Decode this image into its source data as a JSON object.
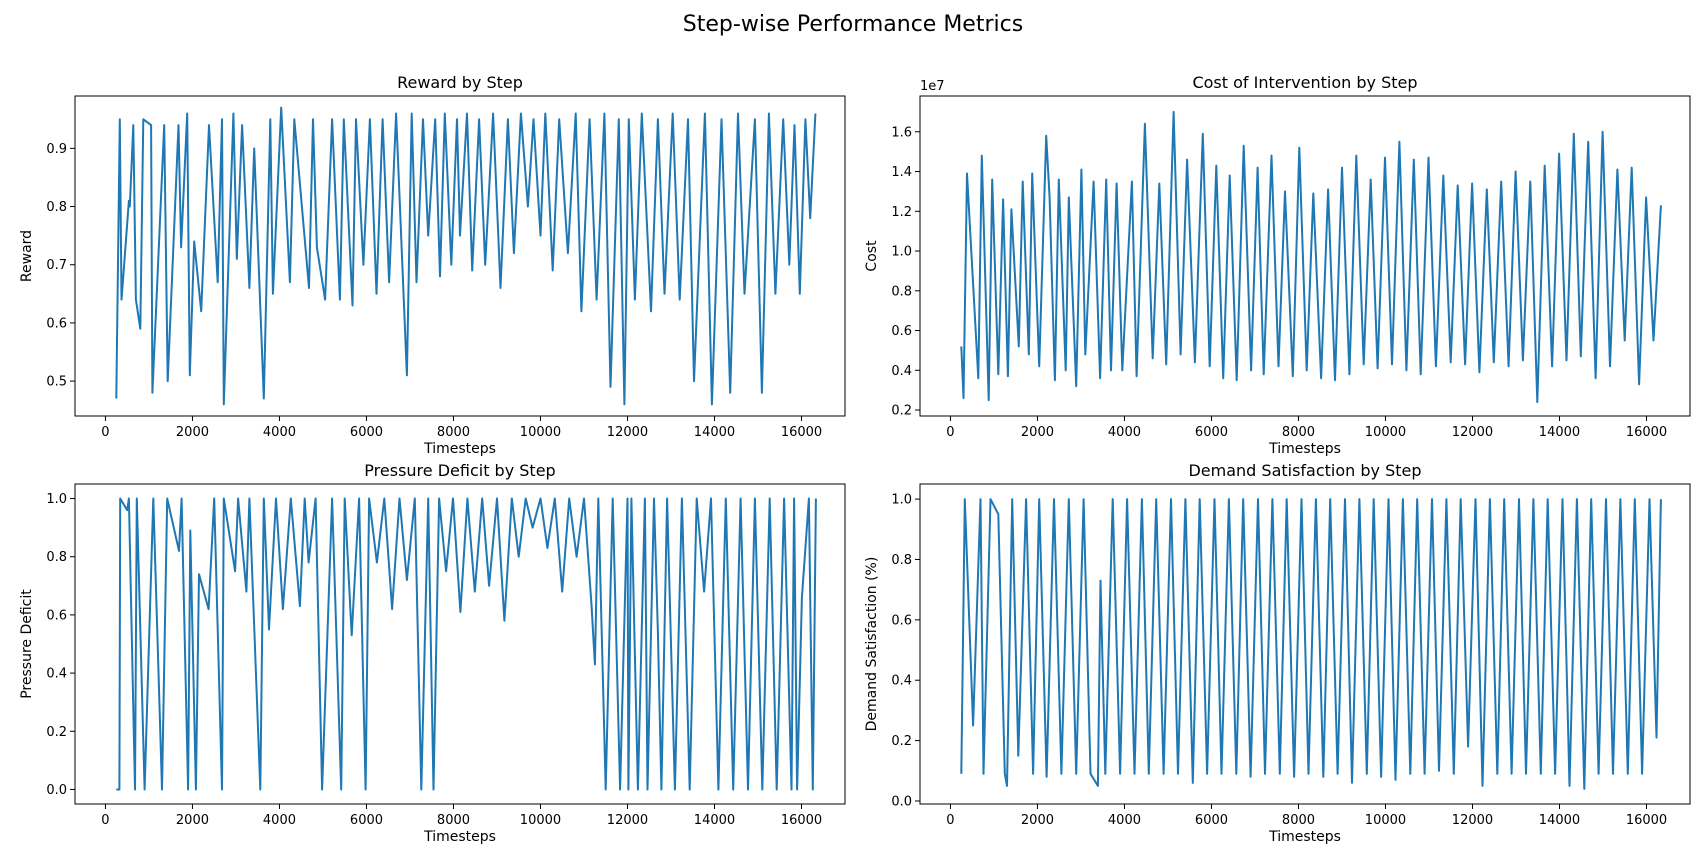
{
  "figure": {
    "title": "Step-wise Performance Metrics"
  },
  "colors": {
    "line": "#1f77b4",
    "axis": "#000000",
    "background": "#ffffff"
  },
  "chart_data": [
    {
      "type": "line",
      "title": "Reward by Step",
      "xlabel": "Timesteps",
      "ylabel": "Reward",
      "xlim": [
        -700,
        17000
      ],
      "ylim": [
        0.44,
        0.99
      ],
      "xticks": [
        0,
        2000,
        4000,
        6000,
        8000,
        10000,
        12000,
        14000,
        16000
      ],
      "xticklabels": [
        "0",
        "2000",
        "4000",
        "6000",
        "8000",
        "10000",
        "12000",
        "14000",
        "16000"
      ],
      "yticks": [
        0.5,
        0.6,
        0.7,
        0.8,
        0.9
      ],
      "yticklabels": [
        "0.5",
        "0.6",
        "0.7",
        "0.8",
        "0.9"
      ],
      "grid": false,
      "series": [
        {
          "x": [
            250,
            330,
            370,
            390,
            540,
            560,
            640,
            700,
            800,
            870,
            1050,
            1080,
            1350,
            1430,
            1680,
            1740,
            1880,
            1940,
            2040,
            2200,
            2380,
            2580,
            2680,
            2720,
            2940,
            3020,
            3140,
            3310,
            3420,
            3640,
            3790,
            3850,
            4040,
            4240,
            4340,
            4680,
            4770,
            4860,
            5050,
            5210,
            5390,
            5480,
            5680,
            5760,
            5930,
            6080,
            6230,
            6370,
            6520,
            6680,
            6930,
            7040,
            7150,
            7300,
            7420,
            7580,
            7690,
            7800,
            7950,
            8080,
            8150,
            8310,
            8430,
            8590,
            8730,
            8910,
            9080,
            9250,
            9390,
            9550,
            9710,
            9840,
            10000,
            10110,
            10280,
            10430,
            10630,
            10810,
            10940,
            11130,
            11290,
            11470,
            11610,
            11800,
            11930,
            12030,
            12170,
            12330,
            12540,
            12700,
            12850,
            13040,
            13200,
            13390,
            13530,
            13780,
            13940,
            14160,
            14360,
            14540,
            14690,
            14930,
            15090,
            15250,
            15400,
            15580,
            15720,
            15840,
            15960,
            16090,
            16200,
            16320
          ],
          "y": [
            0.47,
            0.95,
            0.64,
            0.66,
            0.81,
            0.8,
            0.94,
            0.64,
            0.59,
            0.95,
            0.94,
            0.48,
            0.94,
            0.5,
            0.94,
            0.73,
            0.96,
            0.51,
            0.74,
            0.62,
            0.94,
            0.67,
            0.95,
            0.46,
            0.96,
            0.71,
            0.94,
            0.66,
            0.9,
            0.47,
            0.95,
            0.65,
            0.97,
            0.67,
            0.95,
            0.66,
            0.95,
            0.73,
            0.64,
            0.95,
            0.64,
            0.95,
            0.63,
            0.95,
            0.7,
            0.95,
            0.65,
            0.95,
            0.67,
            0.96,
            0.51,
            0.96,
            0.67,
            0.95,
            0.75,
            0.95,
            0.68,
            0.96,
            0.7,
            0.95,
            0.75,
            0.96,
            0.69,
            0.95,
            0.7,
            0.96,
            0.66,
            0.95,
            0.72,
            0.96,
            0.8,
            0.95,
            0.75,
            0.96,
            0.69,
            0.95,
            0.72,
            0.96,
            0.62,
            0.95,
            0.64,
            0.96,
            0.49,
            0.95,
            0.46,
            0.95,
            0.64,
            0.96,
            0.62,
            0.95,
            0.65,
            0.96,
            0.64,
            0.95,
            0.5,
            0.96,
            0.46,
            0.95,
            0.48,
            0.96,
            0.65,
            0.95,
            0.48,
            0.96,
            0.65,
            0.95,
            0.7,
            0.94,
            0.65,
            0.95,
            0.78,
            0.96
          ]
        }
      ]
    },
    {
      "type": "line",
      "title": "Cost of Intervention by Step",
      "xlabel": "Timesteps",
      "ylabel": "Cost",
      "offset_text": "1e7",
      "xlim": [
        -700,
        17000
      ],
      "ylim": [
        0.17,
        1.78
      ],
      "xticks": [
        0,
        2000,
        4000,
        6000,
        8000,
        10000,
        12000,
        14000,
        16000
      ],
      "xticklabels": [
        "0",
        "2000",
        "4000",
        "6000",
        "8000",
        "10000",
        "12000",
        "14000",
        "16000"
      ],
      "yticks": [
        0.2,
        0.4,
        0.6,
        0.8,
        1.0,
        1.2,
        1.4,
        1.6
      ],
      "yticklabels": [
        "0.2",
        "0.4",
        "0.6",
        "0.8",
        "1.0",
        "1.2",
        "1.4",
        "1.6"
      ],
      "grid": false,
      "series": [
        {
          "x": [
            250,
            300,
            380,
            640,
            720,
            880,
            960,
            1100,
            1210,
            1320,
            1400,
            1570,
            1660,
            1800,
            1880,
            2040,
            2200,
            2280,
            2400,
            2490,
            2650,
            2720,
            2890,
            3010,
            3100,
            3290,
            3440,
            3580,
            3690,
            3820,
            3950,
            4170,
            4280,
            4470,
            4650,
            4800,
            4960,
            5130,
            5290,
            5440,
            5620,
            5800,
            5960,
            6110,
            6270,
            6420,
            6580,
            6740,
            6910,
            7060,
            7200,
            7380,
            7540,
            7690,
            7870,
            8020,
            8190,
            8340,
            8520,
            8680,
            8840,
            9000,
            9170,
            9330,
            9500,
            9660,
            9820,
            9990,
            10150,
            10320,
            10480,
            10650,
            10810,
            10990,
            11160,
            11330,
            11500,
            11660,
            11830,
            11990,
            12160,
            12330,
            12490,
            12660,
            12830,
            12990,
            13160,
            13330,
            13490,
            13660,
            13830,
            13990,
            14160,
            14330,
            14490,
            14660,
            14830,
            14990,
            15160,
            15330,
            15500,
            15660,
            15830,
            15990,
            16160,
            16330
          ],
          "y": [
            0.52,
            0.26,
            1.39,
            0.36,
            1.48,
            0.25,
            1.36,
            0.38,
            1.26,
            0.37,
            1.21,
            0.52,
            1.35,
            0.48,
            1.39,
            0.42,
            1.58,
            1.27,
            0.35,
            1.36,
            0.4,
            1.27,
            0.32,
            1.41,
            0.48,
            1.35,
            0.36,
            1.36,
            0.4,
            1.34,
            0.4,
            1.35,
            0.37,
            1.64,
            0.46,
            1.34,
            0.43,
            1.7,
            0.48,
            1.46,
            0.44,
            1.59,
            0.42,
            1.43,
            0.36,
            1.38,
            0.35,
            1.53,
            0.4,
            1.42,
            0.38,
            1.48,
            0.42,
            1.3,
            0.37,
            1.52,
            0.4,
            1.29,
            0.36,
            1.31,
            0.35,
            1.42,
            0.38,
            1.48,
            0.43,
            1.36,
            0.41,
            1.47,
            0.43,
            1.55,
            0.4,
            1.46,
            0.38,
            1.47,
            0.42,
            1.38,
            0.44,
            1.33,
            0.43,
            1.34,
            0.39,
            1.31,
            0.44,
            1.35,
            0.42,
            1.4,
            0.45,
            1.35,
            0.24,
            1.43,
            0.42,
            1.49,
            0.45,
            1.59,
            0.47,
            1.55,
            0.36,
            1.6,
            0.42,
            1.41,
            0.55,
            1.42,
            0.33,
            1.27,
            0.55,
            1.23
          ]
        }
      ]
    },
    {
      "type": "line",
      "title": "Pressure Deficit by Step",
      "xlabel": "Timesteps",
      "ylabel": "Pressure Deficit",
      "xlim": [
        -700,
        17000
      ],
      "ylim": [
        -0.05,
        1.05
      ],
      "xticks": [
        0,
        2000,
        4000,
        6000,
        8000,
        10000,
        12000,
        14000,
        16000
      ],
      "xticklabels": [
        "0",
        "2000",
        "4000",
        "6000",
        "8000",
        "10000",
        "12000",
        "14000",
        "16000"
      ],
      "yticks": [
        0.0,
        0.2,
        0.4,
        0.6,
        0.8,
        1.0
      ],
      "yticklabels": [
        "0.0",
        "0.2",
        "0.4",
        "0.6",
        "0.8",
        "1.0"
      ],
      "grid": false,
      "series": [
        {
          "x": [
            250,
            320,
            340,
            500,
            540,
            680,
            720,
            900,
            1100,
            1300,
            1420,
            1690,
            1750,
            1900,
            1950,
            2080,
            2150,
            2370,
            2500,
            2680,
            2720,
            2980,
            3050,
            3240,
            3310,
            3560,
            3640,
            3760,
            3920,
            4080,
            4260,
            4470,
            4580,
            4670,
            4830,
            4980,
            5210,
            5420,
            5500,
            5660,
            5830,
            5980,
            6060,
            6240,
            6410,
            6590,
            6760,
            6930,
            7110,
            7260,
            7420,
            7540,
            7670,
            7830,
            7990,
            8160,
            8320,
            8490,
            8660,
            8820,
            9000,
            9170,
            9340,
            9500,
            9660,
            9820,
            10000,
            10160,
            10330,
            10500,
            10660,
            10830,
            11000,
            11170,
            11250,
            11330,
            11500,
            11660,
            11830,
            12000,
            12020,
            12090,
            12240,
            12400,
            12460,
            12610,
            12700,
            12780,
            12910,
            13090,
            13250,
            13430,
            13590,
            13760,
            13920,
            14090,
            14260,
            14430,
            14600,
            14770,
            14930,
            15100,
            15270,
            15430,
            15600,
            15770,
            15830,
            15900,
            16010,
            16170,
            16260,
            16330
          ],
          "y": [
            0.0,
            0.0,
            1.0,
            0.96,
            1.0,
            0.0,
            1.0,
            0.0,
            1.0,
            0.0,
            1.0,
            0.82,
            1.0,
            0.0,
            0.89,
            0.0,
            0.74,
            0.62,
            1.0,
            0.0,
            1.0,
            0.75,
            1.0,
            0.68,
            1.0,
            0.0,
            1.0,
            0.55,
            1.0,
            0.62,
            1.0,
            0.63,
            1.0,
            0.78,
            1.0,
            0.0,
            1.0,
            0.0,
            1.0,
            0.53,
            1.0,
            0.0,
            1.0,
            0.78,
            1.0,
            0.62,
            1.0,
            0.72,
            1.0,
            0.0,
            1.0,
            0.0,
            1.0,
            0.75,
            1.0,
            0.61,
            1.0,
            0.68,
            1.0,
            0.7,
            1.0,
            0.58,
            1.0,
            0.8,
            1.0,
            0.9,
            1.0,
            0.83,
            1.0,
            0.68,
            1.0,
            0.8,
            1.0,
            0.64,
            0.43,
            1.0,
            0.0,
            1.0,
            0.0,
            1.0,
            0.0,
            1.0,
            0.0,
            1.0,
            0.0,
            1.0,
            0.54,
            0.0,
            1.0,
            0.0,
            1.0,
            0.0,
            1.0,
            0.68,
            1.0,
            0.0,
            1.0,
            0.0,
            1.0,
            0.0,
            1.0,
            0.0,
            1.0,
            0.0,
            1.0,
            0.0,
            1.0,
            0.0,
            0.66,
            1.0,
            0.0,
            1.0
          ]
        }
      ]
    },
    {
      "type": "line",
      "title": "Demand Satisfaction by Step",
      "xlabel": "Timesteps",
      "ylabel": "Demand Satisfaction (%)",
      "xlim": [
        -700,
        17000
      ],
      "ylim": [
        -0.01,
        1.05
      ],
      "xticks": [
        0,
        2000,
        4000,
        6000,
        8000,
        10000,
        12000,
        14000,
        16000
      ],
      "xticklabels": [
        "0",
        "2000",
        "4000",
        "6000",
        "8000",
        "10000",
        "12000",
        "14000",
        "16000"
      ],
      "yticks": [
        0.0,
        0.2,
        0.4,
        0.6,
        0.8,
        1.0
      ],
      "yticklabels": [
        "0.0",
        "0.2",
        "0.4",
        "0.6",
        "0.8",
        "1.0"
      ],
      "grid": false,
      "series": [
        {
          "x": [
            250,
            330,
            520,
            690,
            760,
            920,
            1100,
            1250,
            1300,
            1420,
            1560,
            1740,
            1900,
            2040,
            2210,
            2380,
            2550,
            2720,
            2890,
            3060,
            3220,
            3390,
            3450,
            3560,
            3730,
            3900,
            4060,
            4230,
            4400,
            4560,
            4730,
            4900,
            5070,
            5230,
            5400,
            5570,
            5730,
            5900,
            6070,
            6230,
            6400,
            6570,
            6730,
            6900,
            7070,
            7230,
            7400,
            7570,
            7730,
            7900,
            8070,
            8230,
            8400,
            8570,
            8730,
            8900,
            9070,
            9230,
            9400,
            9570,
            9730,
            9900,
            10070,
            10230,
            10400,
            10570,
            10730,
            10900,
            11070,
            11230,
            11400,
            11570,
            11730,
            11900,
            12070,
            12230,
            12400,
            12570,
            12730,
            12900,
            13070,
            13230,
            13400,
            13570,
            13730,
            13900,
            14070,
            14230,
            14400,
            14570,
            14730,
            14900,
            15070,
            15230,
            15400,
            15570,
            15730,
            15900,
            16070,
            16230,
            16330
          ],
          "y": [
            0.09,
            1.0,
            0.25,
            1.0,
            0.09,
            1.0,
            0.95,
            0.09,
            0.05,
            1.0,
            0.15,
            1.0,
            0.09,
            1.0,
            0.08,
            1.0,
            0.09,
            1.0,
            0.09,
            1.0,
            0.09,
            0.05,
            0.73,
            0.09,
            1.0,
            0.09,
            1.0,
            0.09,
            1.0,
            0.09,
            1.0,
            0.09,
            1.0,
            0.09,
            1.0,
            0.06,
            1.0,
            0.09,
            1.0,
            0.09,
            1.0,
            0.09,
            1.0,
            0.08,
            1.0,
            0.09,
            1.0,
            0.09,
            1.0,
            0.08,
            1.0,
            0.09,
            1.0,
            0.08,
            1.0,
            0.09,
            1.0,
            0.06,
            1.0,
            0.09,
            1.0,
            0.08,
            1.0,
            0.07,
            1.0,
            0.09,
            1.0,
            0.09,
            1.0,
            0.1,
            1.0,
            0.09,
            1.0,
            0.18,
            1.0,
            0.05,
            1.0,
            0.09,
            1.0,
            0.09,
            1.0,
            0.09,
            1.0,
            0.09,
            1.0,
            0.09,
            1.0,
            0.05,
            1.0,
            0.04,
            1.0,
            0.09,
            1.0,
            0.09,
            1.0,
            0.09,
            1.0,
            0.09,
            1.0,
            0.21,
            1.0
          ]
        }
      ]
    }
  ]
}
